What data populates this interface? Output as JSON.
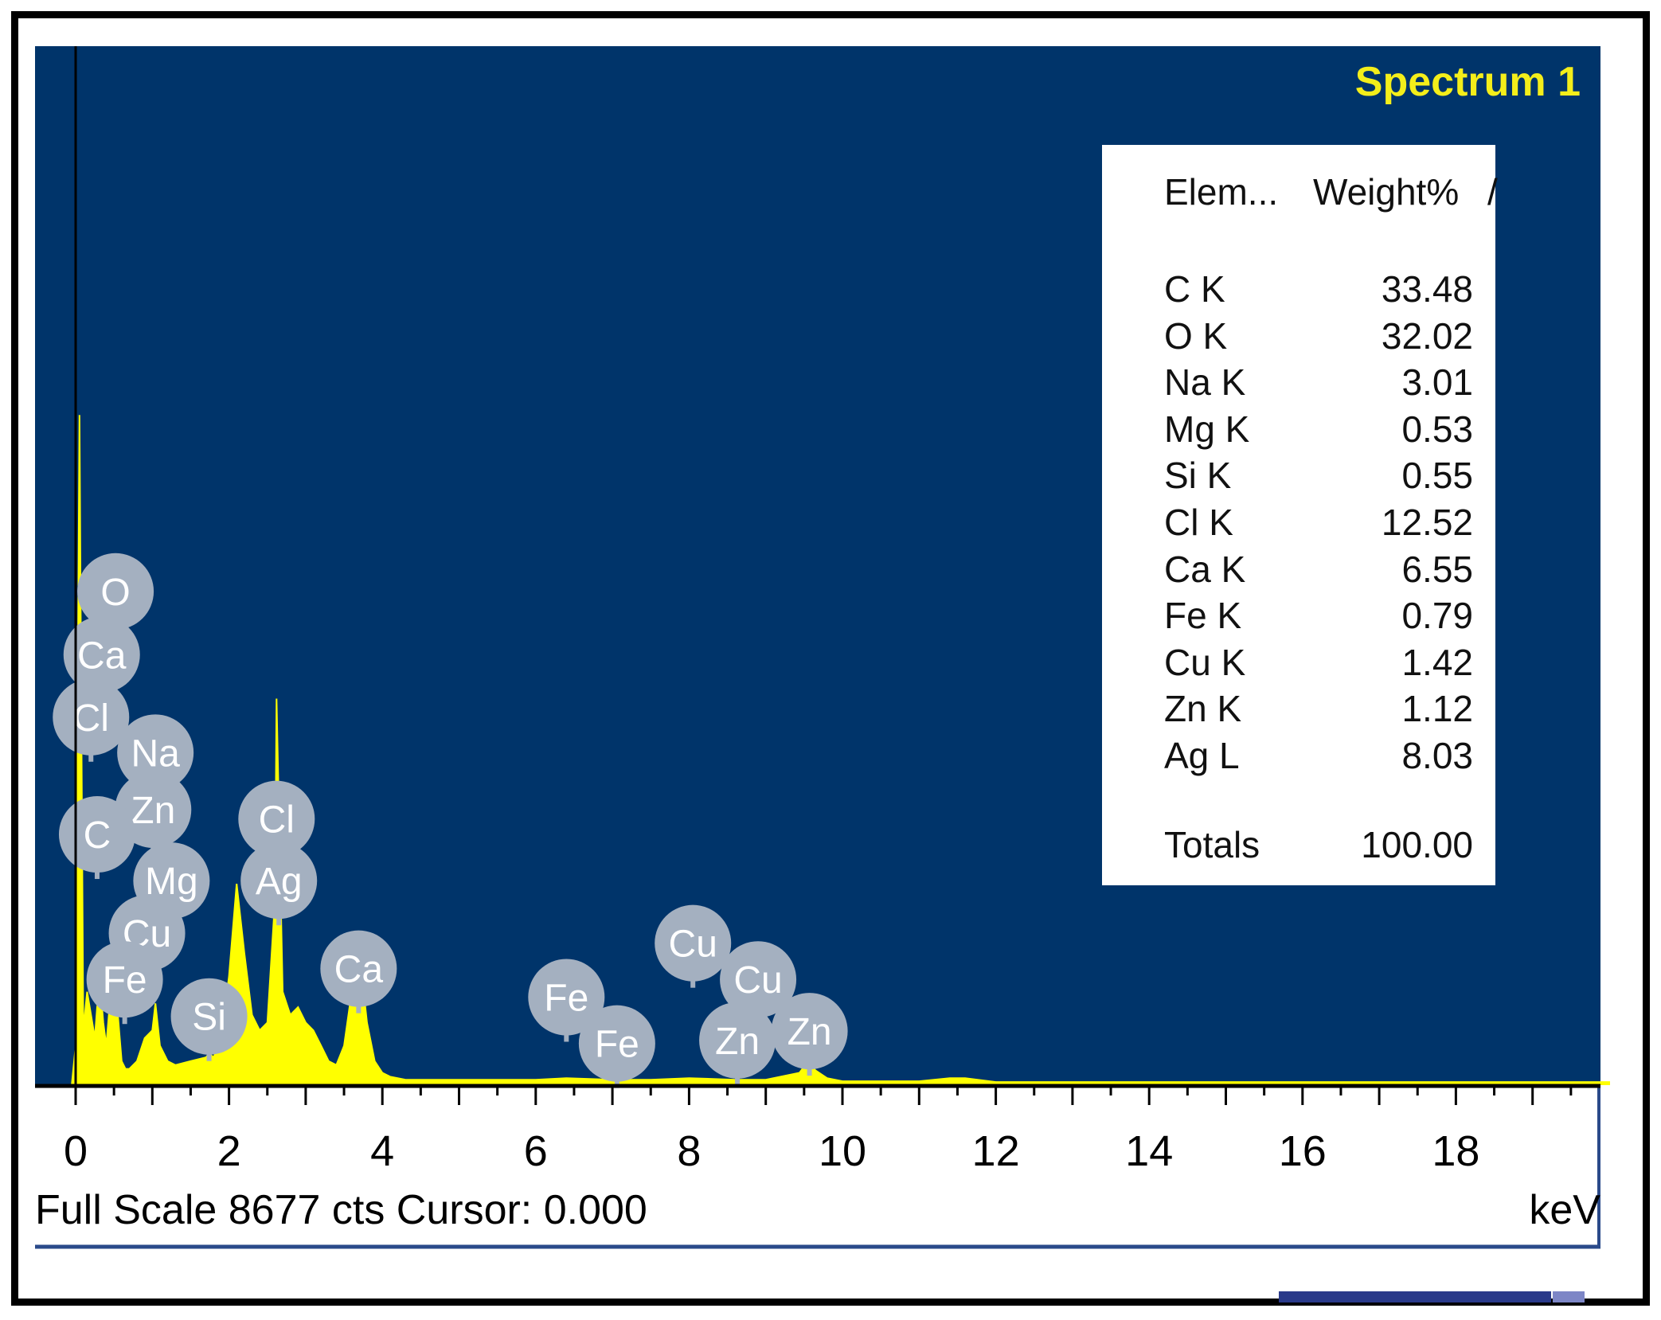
{
  "chart_data": {
    "type": "line",
    "title": "Spectrum 1",
    "xlabel": "keV",
    "xlim": [
      0,
      20
    ],
    "x_ticks": [
      "0",
      "2",
      "4",
      "6",
      "8",
      "10",
      "12",
      "14",
      "16",
      "18"
    ],
    "full_scale_text": "Full Scale 8677 cts Cursor: 0.000",
    "unit_label": "keV",
    "series": [
      {
        "x": [
          -0.05,
          0.0,
          0.05,
          0.1,
          0.15,
          0.2,
          0.25,
          0.28,
          0.32,
          0.36,
          0.4,
          0.45,
          0.5,
          0.52,
          0.55,
          0.6,
          0.65,
          0.7,
          0.8,
          0.9,
          1.0,
          1.04,
          1.1,
          1.2,
          1.3,
          1.5,
          1.7,
          1.74,
          1.8,
          1.9,
          2.0,
          2.1,
          2.2,
          2.3,
          2.4,
          2.5,
          2.6,
          2.62,
          2.7,
          2.8,
          2.9,
          3.0,
          3.1,
          3.2,
          3.3,
          3.4,
          3.5,
          3.6,
          3.69,
          3.8,
          3.9,
          4.0,
          4.1,
          4.3,
          5.0,
          6.0,
          6.4,
          7.0,
          7.5,
          8.0,
          8.6,
          9.0,
          9.44,
          9.55,
          9.65,
          9.8,
          10.0,
          11.0,
          11.4,
          11.6,
          12.0,
          20.0
        ],
        "y": [
          0,
          500,
          8677,
          700,
          1200,
          900,
          600,
          1000,
          1300,
          800,
          500,
          1100,
          1800,
          1500,
          900,
          300,
          200,
          200,
          300,
          600,
          700,
          1050,
          500,
          300,
          250,
          300,
          350,
          400,
          350,
          600,
          1400,
          2600,
          1700,
          900,
          700,
          800,
          2400,
          5000,
          1200,
          900,
          1000,
          800,
          700,
          500,
          300,
          250,
          500,
          1200,
          1800,
          800,
          300,
          150,
          100,
          60,
          60,
          60,
          80,
          60,
          60,
          80,
          60,
          60,
          150,
          300,
          180,
          80,
          40,
          40,
          80,
          80,
          30,
          30
        ]
      }
    ],
    "peak_labels": [
      {
        "element": "O",
        "x": 0.52,
        "y": 6390
      },
      {
        "element": "Ca",
        "x": 0.34,
        "y": 5570
      },
      {
        "element": "Cl",
        "x": 0.2,
        "y": 4760
      },
      {
        "element": "Na",
        "x": 1.04,
        "y": 4300
      },
      {
        "element": "Zn",
        "x": 1.01,
        "y": 3560
      },
      {
        "element": "C",
        "x": 0.28,
        "y": 3240
      },
      {
        "element": "Cl",
        "x": 2.62,
        "y": 3440
      },
      {
        "element": "Mg",
        "x": 1.25,
        "y": 2640
      },
      {
        "element": "Ag",
        "x": 2.65,
        "y": 2640
      },
      {
        "element": "Cu",
        "x": 0.93,
        "y": 1960
      },
      {
        "element": "Fe",
        "x": 0.64,
        "y": 1360
      },
      {
        "element": "Ca",
        "x": 3.69,
        "y": 1500
      },
      {
        "element": "Si",
        "x": 1.74,
        "y": 880
      },
      {
        "element": "Fe",
        "x": 6.4,
        "y": 1130
      },
      {
        "element": "Fe",
        "x": 7.06,
        "y": 530
      },
      {
        "element": "Cu",
        "x": 8.05,
        "y": 1830
      },
      {
        "element": "Cu",
        "x": 8.9,
        "y": 1360
      },
      {
        "element": "Zn",
        "x": 8.63,
        "y": 570
      },
      {
        "element": "Zn",
        "x": 9.57,
        "y": 690
      }
    ],
    "colors": {
      "plot_background": "#00346a",
      "spectrum": "#ffff00",
      "title": "#f4ee1a",
      "peak_label_fill": "#a4b0c0",
      "peak_label_text": "#ffffff"
    }
  },
  "table": {
    "header_element": "Elem...",
    "header_weight": "Weight%",
    "header_cut": "/",
    "rows": [
      {
        "element": "C K",
        "weight": "33.48"
      },
      {
        "element": "O K",
        "weight": "32.02"
      },
      {
        "element": "Na K",
        "weight": "3.01"
      },
      {
        "element": "Mg K",
        "weight": "0.53"
      },
      {
        "element": "Si K",
        "weight": "0.55"
      },
      {
        "element": "Cl K",
        "weight": "12.52"
      },
      {
        "element": "Ca K",
        "weight": "6.55"
      },
      {
        "element": "Fe K",
        "weight": "0.79"
      },
      {
        "element": "Cu K",
        "weight": "1.42"
      },
      {
        "element": "Zn K",
        "weight": "1.12"
      },
      {
        "element": "Ag L",
        "weight": "8.03"
      }
    ],
    "totals_label": "Totals",
    "totals_value": "100.00"
  }
}
